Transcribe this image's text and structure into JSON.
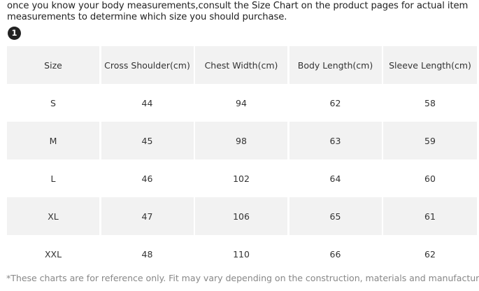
{
  "intro_line1": "once you know your body measurements,consult the Size Chart on the product pages for actual item",
  "intro_line2": "measurements to determine which size you should purchase.",
  "badge": "1",
  "table": {
    "headers": [
      "Size",
      "Cross Shoulder(cm)",
      "Chest Width(cm)",
      "Body Length(cm)",
      "Sleeve Length(cm)"
    ],
    "rows": [
      [
        "S",
        "44",
        "94",
        "62",
        "58"
      ],
      [
        "M",
        "45",
        "98",
        "63",
        "59"
      ],
      [
        "L",
        "46",
        "102",
        "64",
        "60"
      ],
      [
        "XL",
        "47",
        "106",
        "65",
        "61"
      ],
      [
        "XXL",
        "48",
        "110",
        "66",
        "62"
      ]
    ]
  },
  "footer": "*These charts are for reference only. Fit may vary depending on the construction, materials and manufacturer.",
  "colors": {
    "shaded_row": "#f2f2f2",
    "text": "#333333",
    "footer_text": "#888888",
    "badge_bg": "#222222"
  }
}
